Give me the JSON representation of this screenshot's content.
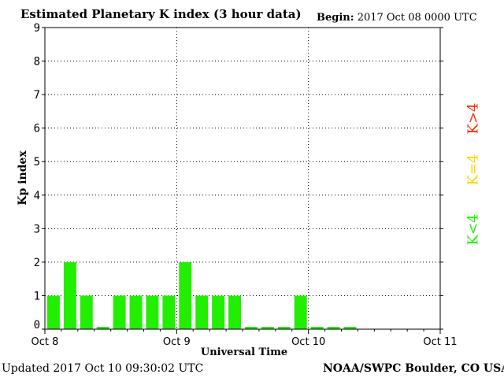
{
  "header": {
    "title": "Estimated Planetary K index (3 hour data)",
    "begin_label": "Begin:",
    "begin_value": "2017 Oct 08 0000 UTC"
  },
  "footer": {
    "updated": "Updated 2017 Oct 10 09:30:02 UTC",
    "credit": "NOAA/SWPC Boulder, CO USA"
  },
  "legend": {
    "high": {
      "label": "K>4",
      "color": "#ff2a00"
    },
    "mid": {
      "label": "K=4",
      "color": "#ffd400"
    },
    "low": {
      "label": "K<4",
      "color": "#22ee00"
    }
  },
  "chart_data": {
    "type": "bar",
    "title": "Estimated Planetary K index (3 hour data)",
    "xlabel": "Universal Time",
    "ylabel": "Kp index",
    "ylim": [
      0,
      9
    ],
    "yticks": [
      "0",
      "1",
      "2",
      "3",
      "4",
      "5",
      "6",
      "7",
      "8",
      "9"
    ],
    "xtick_labels": [
      "Oct 8",
      "Oct 9",
      "Oct 10",
      "Oct 11"
    ],
    "grid": true,
    "bar_color": "#22ee00",
    "categories": [
      "Oct 08 00",
      "Oct 08 03",
      "Oct 08 06",
      "Oct 08 09",
      "Oct 08 12",
      "Oct 08 15",
      "Oct 08 18",
      "Oct 08 21",
      "Oct 09 00",
      "Oct 09 03",
      "Oct 09 06",
      "Oct 09 09",
      "Oct 09 12",
      "Oct 09 15",
      "Oct 09 18",
      "Oct 09 21",
      "Oct 10 00",
      "Oct 10 03",
      "Oct 10 06"
    ],
    "values": [
      1,
      2,
      1,
      0.07,
      1,
      1,
      1,
      1,
      2,
      1,
      1,
      1,
      0.07,
      0.07,
      0.07,
      1,
      0.07,
      0.07,
      0.07
    ]
  }
}
